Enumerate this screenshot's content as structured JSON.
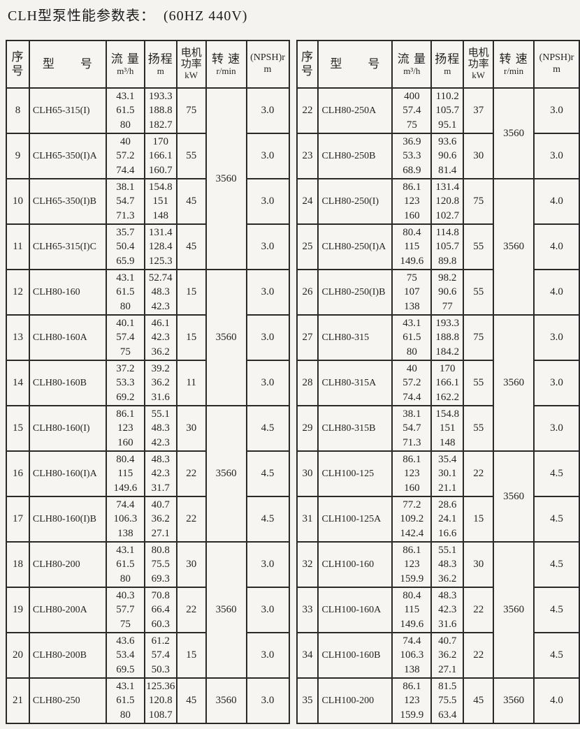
{
  "title": "CLH型泵性能参数表：  (60HZ 440V)",
  "header": {
    "col_serial_line1": "序",
    "col_serial_line2": "号",
    "col_model": "型　　号",
    "col_flow_line1": "流 量",
    "col_flow_line2": "m³/h",
    "col_head_line1": "扬程",
    "col_head_line2": "m",
    "col_power_line1": "电机",
    "col_power_line2": "功率",
    "col_power_line3": "kW",
    "col_speed_line1": "转 速",
    "col_speed_line2": "r/min",
    "col_npsh_line1": "(NPSH)r",
    "col_npsh_line2": "m"
  },
  "left_table": {
    "rows": [
      {
        "no": "8",
        "model": "CLH65-315(I)",
        "flow": [
          "43.1",
          "61.5",
          "80"
        ],
        "head": [
          "193.3",
          "188.8",
          "182.7"
        ],
        "power": "75",
        "npsh": "3.0"
      },
      {
        "no": "9",
        "model": "CLH65-350(I)A",
        "flow": [
          "40",
          "57.2",
          "74.4"
        ],
        "head": [
          "170",
          "166.1",
          "160.7"
        ],
        "power": "55",
        "npsh": "3.0"
      },
      {
        "no": "10",
        "model": "CLH65-350(I)B",
        "flow": [
          "38.1",
          "54.7",
          "71.3"
        ],
        "head": [
          "154.8",
          "151",
          "148"
        ],
        "power": "45",
        "npsh": "3.0"
      },
      {
        "no": "11",
        "model": "CLH65-315(I)C",
        "flow": [
          "35.7",
          "50.4",
          "65.9"
        ],
        "head": [
          "131.4",
          "128.4",
          "125.3"
        ],
        "power": "45",
        "npsh": "3.0"
      },
      {
        "no": "12",
        "model": "CLH80-160",
        "flow": [
          "43.1",
          "61.5",
          "80"
        ],
        "head": [
          "52.74",
          "48.3",
          "42.3"
        ],
        "power": "15",
        "npsh": "3.0"
      },
      {
        "no": "13",
        "model": "CLH80-160A",
        "flow": [
          "40.1",
          "57.4",
          "75"
        ],
        "head": [
          "46.1",
          "42.3",
          "36.2"
        ],
        "power": "15",
        "npsh": "3.0"
      },
      {
        "no": "14",
        "model": "CLH80-160B",
        "flow": [
          "37.2",
          "53.3",
          "69.2"
        ],
        "head": [
          "39.2",
          "36.2",
          "31.6"
        ],
        "power": "11",
        "npsh": "3.0"
      },
      {
        "no": "15",
        "model": "CLH80-160(I)",
        "flow": [
          "86.1",
          "123",
          "160"
        ],
        "head": [
          "55.1",
          "48.3",
          "42.3"
        ],
        "power": "30",
        "npsh": "4.5"
      },
      {
        "no": "16",
        "model": "CLH80-160(I)A",
        "flow": [
          "80.4",
          "115",
          "149.6"
        ],
        "head": [
          "48.3",
          "42.3",
          "31.7"
        ],
        "power": "22",
        "npsh": "4.5"
      },
      {
        "no": "17",
        "model": "CLH80-160(I)B",
        "flow": [
          "74.4",
          "106.3",
          "138"
        ],
        "head": [
          "40.7",
          "36.2",
          "27.1"
        ],
        "power": "22",
        "npsh": "4.5"
      },
      {
        "no": "18",
        "model": "CLH80-200",
        "flow": [
          "43.1",
          "61.5",
          "80"
        ],
        "head": [
          "80.8",
          "75.5",
          "69.3"
        ],
        "power": "30",
        "npsh": "3.0"
      },
      {
        "no": "19",
        "model": "CLH80-200A",
        "flow": [
          "40.3",
          "57.7",
          "75"
        ],
        "head": [
          "70.8",
          "66.4",
          "60.3"
        ],
        "power": "22",
        "npsh": "3.0"
      },
      {
        "no": "20",
        "model": "CLH80-200B",
        "flow": [
          "43.6",
          "53.4",
          "69.5"
        ],
        "head": [
          "61.2",
          "57.4",
          "50.3"
        ],
        "power": "15",
        "npsh": "3.0"
      },
      {
        "no": "21",
        "model": "CLH80-250",
        "flow": [
          "43.1",
          "61.5",
          "80"
        ],
        "head": [
          "125.36",
          "120.8",
          "108.7"
        ],
        "power": "45",
        "npsh": "3.0"
      }
    ],
    "speed_groups": [
      {
        "start": 0,
        "rows": 4,
        "value": "3560"
      },
      {
        "start": 4,
        "rows": 3,
        "value": "3560"
      },
      {
        "start": 7,
        "rows": 3,
        "value": "3560"
      },
      {
        "start": 10,
        "rows": 3,
        "value": "3560"
      },
      {
        "start": 13,
        "rows": 1,
        "value": "3560"
      }
    ]
  },
  "right_table": {
    "rows": [
      {
        "no": "22",
        "model": "CLH80-250A",
        "flow": [
          "400",
          "57.4",
          "75"
        ],
        "head": [
          "110.2",
          "105.7",
          "95.1"
        ],
        "power": "37",
        "npsh": "3.0"
      },
      {
        "no": "23",
        "model": "CLH80-250B",
        "flow": [
          "36.9",
          "53.3",
          "68.9"
        ],
        "head": [
          "93.6",
          "90.6",
          "81.4"
        ],
        "power": "30",
        "npsh": "3.0"
      },
      {
        "no": "24",
        "model": "CLH80-250(I)",
        "flow": [
          "86.1",
          "123",
          "160"
        ],
        "head": [
          "131.4",
          "120.8",
          "102.7"
        ],
        "power": "75",
        "npsh": "4.0"
      },
      {
        "no": "25",
        "model": "CLH80-250(I)A",
        "flow": [
          "80.4",
          "115",
          "149.6"
        ],
        "head": [
          "114.8",
          "105.7",
          "89.8"
        ],
        "power": "55",
        "npsh": "4.0"
      },
      {
        "no": "26",
        "model": "CLH80-250(I)B",
        "flow": [
          "75",
          "107",
          "138"
        ],
        "head": [
          "98.2",
          "90.6",
          "77"
        ],
        "power": "55",
        "npsh": "4.0"
      },
      {
        "no": "27",
        "model": "CLH80-315",
        "flow": [
          "43.1",
          "61.5",
          "80"
        ],
        "head": [
          "193.3",
          "188.8",
          "184.2"
        ],
        "power": "75",
        "npsh": "3.0"
      },
      {
        "no": "28",
        "model": "CLH80-315A",
        "flow": [
          "40",
          "57.2",
          "74.4"
        ],
        "head": [
          "170",
          "166.1",
          "162.2"
        ],
        "power": "55",
        "npsh": "3.0"
      },
      {
        "no": "29",
        "model": "CLH80-315B",
        "flow": [
          "38.1",
          "54.7",
          "71.3"
        ],
        "head": [
          "154.8",
          "151",
          "148"
        ],
        "power": "55",
        "npsh": "3.0"
      },
      {
        "no": "30",
        "model": "CLH100-125",
        "flow": [
          "86.1",
          "123",
          "160"
        ],
        "head": [
          "35.4",
          "30.1",
          "21.1"
        ],
        "power": "22",
        "npsh": "4.5"
      },
      {
        "no": "31",
        "model": "CLH100-125A",
        "flow": [
          "77.2",
          "109.2",
          "142.4"
        ],
        "head": [
          "28.6",
          "24.1",
          "16.6"
        ],
        "power": "15",
        "npsh": "4.5"
      },
      {
        "no": "32",
        "model": "CLH100-160",
        "flow": [
          "86.1",
          "123",
          "159.9"
        ],
        "head": [
          "55.1",
          "48.3",
          "36.2"
        ],
        "power": "30",
        "npsh": "4.5"
      },
      {
        "no": "33",
        "model": "CLH100-160A",
        "flow": [
          "80.4",
          "115",
          "149.6"
        ],
        "head": [
          "48.3",
          "42.3",
          "31.6"
        ],
        "power": "22",
        "npsh": "4.5"
      },
      {
        "no": "34",
        "model": "CLH100-160B",
        "flow": [
          "74.4",
          "106.3",
          "138"
        ],
        "head": [
          "40.7",
          "36.2",
          "27.1"
        ],
        "power": "22",
        "npsh": "4.5"
      },
      {
        "no": "35",
        "model": "CLH100-200",
        "flow": [
          "86.1",
          "123",
          "159.9"
        ],
        "head": [
          "81.5",
          "75.5",
          "63.4"
        ],
        "power": "45",
        "npsh": "4.0"
      }
    ],
    "speed_groups": [
      {
        "start": 0,
        "rows": 2,
        "value": "3560"
      },
      {
        "start": 2,
        "rows": 3,
        "value": "3560"
      },
      {
        "start": 5,
        "rows": 3,
        "value": "3560"
      },
      {
        "start": 8,
        "rows": 2,
        "value": "3560"
      },
      {
        "start": 10,
        "rows": 3,
        "value": "3560"
      },
      {
        "start": 13,
        "rows": 1,
        "value": "3560"
      }
    ]
  }
}
